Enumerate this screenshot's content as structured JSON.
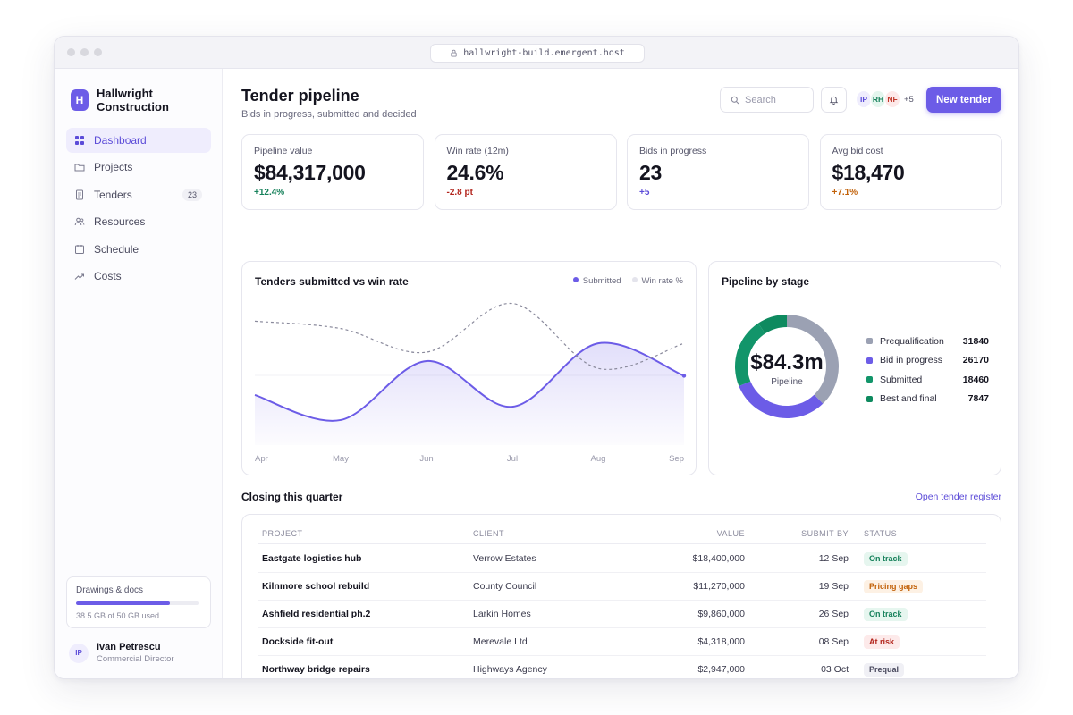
{
  "browser": {
    "url": "hallwright-build.emergent.host"
  },
  "brand": {
    "initial": "H",
    "name": "Hallwright Construction"
  },
  "sidebar": {
    "items": [
      {
        "label": "Dashboard",
        "icon": "grid-icon",
        "active": true
      },
      {
        "label": "Projects",
        "icon": "folder-icon"
      },
      {
        "label": "Tenders",
        "icon": "document-icon",
        "badge": "23"
      },
      {
        "label": "Resources",
        "icon": "people-icon"
      },
      {
        "label": "Schedule",
        "icon": "calendar-icon"
      },
      {
        "label": "Costs",
        "icon": "trend-icon"
      }
    ],
    "storage": {
      "title": "Drawings & docs",
      "used_label": "38.5 GB of 50 GB used",
      "fraction": 0.77
    },
    "user": {
      "initials": "IP",
      "name": "Ivan Petrescu",
      "role": "Commercial Director"
    }
  },
  "header": {
    "title": "Tender pipeline",
    "subtitle": "Bids in progress, submitted and decided",
    "search_placeholder": "Search",
    "avatars": [
      {
        "initials": "IP",
        "bg": "#efedfd",
        "fg": "#5b4bd8"
      },
      {
        "initials": "RH",
        "bg": "#e4f6ee",
        "fg": "#15805a"
      },
      {
        "initials": "NF",
        "bg": "#fde9e9",
        "fg": "#c0392b"
      }
    ],
    "more_label": "+5",
    "new_button": "New tender"
  },
  "kpis": [
    {
      "label": "Pipeline value",
      "value": "$84,317,000",
      "delta": "+12.4%",
      "delta_color": "#15805a"
    },
    {
      "label": "Win rate (12m)",
      "value": "24.6%",
      "delta": "-2.8 pt",
      "delta_color": "#b3261e"
    },
    {
      "label": "Bids in progress",
      "value": "23",
      "delta": "+5",
      "delta_color": "#5b4bd8"
    },
    {
      "label": "Avg bid cost",
      "value": "$18,470",
      "delta": "+7.1%",
      "delta_color": "#c2620a"
    }
  ],
  "line_chart": {
    "title": "Tenders submitted vs win rate",
    "legend": [
      "Submitted",
      "Win rate %"
    ]
  },
  "donut": {
    "title": "Pipeline by stage",
    "center_value": "$84.3m",
    "center_label": "Pipeline"
  },
  "chart_data": [
    {
      "type": "line",
      "title": "Tenders submitted vs win rate",
      "x": [
        "Apr",
        "May",
        "Jun",
        "Jul",
        "Aug",
        "Sep"
      ],
      "series": [
        {
          "name": "Submitted",
          "values": [
            0.34,
            0.17,
            0.57,
            0.26,
            0.69,
            0.47
          ],
          "color": "#6c5ce7",
          "area": true
        },
        {
          "name": "Win rate %",
          "values": [
            0.84,
            0.79,
            0.63,
            0.96,
            0.52,
            0.69
          ],
          "color": "#8a8a9c",
          "dashed": true
        }
      ],
      "ylim": [
        0,
        1
      ],
      "grid": true,
      "legend_position": "top-right"
    },
    {
      "type": "pie",
      "title": "Pipeline by stage",
      "donut": true,
      "categories": [
        "Prequalification",
        "Bid in progress",
        "Submitted",
        "Best and final"
      ],
      "values": [
        31840,
        26170,
        18460,
        7847
      ],
      "colors": [
        "#9ba1b3",
        "#6c5ce7",
        "#12956a",
        "#0e8a5f"
      ],
      "legend_position": "right"
    }
  ],
  "table": {
    "section_title": "Closing this quarter",
    "link": "Open tender register",
    "headers": [
      "PROJECT",
      "CLIENT",
      "VALUE",
      "SUBMIT BY",
      "STATUS"
    ],
    "rows": [
      {
        "project": "Eastgate logistics hub",
        "client": "Verrow Estates",
        "value": "$18,400,000",
        "submit": "12 Sep",
        "status": "On track",
        "status_bg": "#e6f6ef",
        "status_fg": "#15805a"
      },
      {
        "project": "Kilnmore school rebuild",
        "client": "County Council",
        "value": "$11,270,000",
        "submit": "19 Sep",
        "status": "Pricing gaps",
        "status_bg": "#fdf1e4",
        "status_fg": "#c2620a"
      },
      {
        "project": "Ashfield residential ph.2",
        "client": "Larkin Homes",
        "value": "$9,860,000",
        "submit": "26 Sep",
        "status": "On track",
        "status_bg": "#e6f6ef",
        "status_fg": "#15805a"
      },
      {
        "project": "Dockside fit-out",
        "client": "Merevale Ltd",
        "value": "$4,318,000",
        "submit": "08 Sep",
        "status": "At risk",
        "status_bg": "#fdeaea",
        "status_fg": "#b3261e"
      },
      {
        "project": "Northway bridge repairs",
        "client": "Highways Agency",
        "value": "$2,947,000",
        "submit": "03 Oct",
        "status": "Prequal",
        "status_bg": "#f0f0f5",
        "status_fg": "#4a4a5e"
      }
    ]
  }
}
